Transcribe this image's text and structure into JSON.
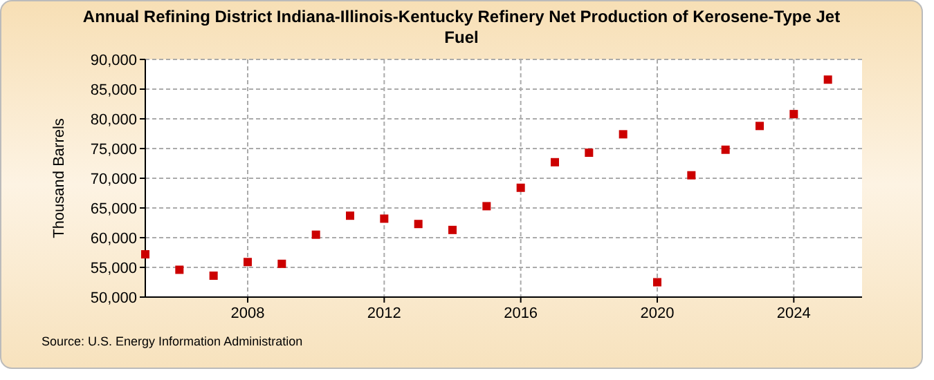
{
  "chart_data": {
    "type": "scatter",
    "title": "Annual Refining District Indiana-Illinois-Kentucky Refinery Net Production of Kerosene-Type Jet Fuel",
    "ylabel": "Thousand Barrels",
    "annotations": [
      "Source: U.S. Energy Information Administration"
    ],
    "x": [
      2005,
      2006,
      2007,
      2008,
      2009,
      2010,
      2011,
      2012,
      2013,
      2014,
      2015,
      2016,
      2017,
      2018,
      2019,
      2020,
      2021,
      2022,
      2023,
      2024,
      2025
    ],
    "series": [
      {
        "color": "#cc0000",
        "values": [
          57200,
          54600,
          53600,
          55900,
          55600,
          60500,
          63700,
          63200,
          62300,
          61300,
          65300,
          68400,
          72700,
          74300,
          77400,
          52500,
          70500,
          74800,
          78800,
          80800,
          86600
        ]
      }
    ],
    "xlim": [
      2005,
      2026
    ],
    "xticks": [
      2008,
      2012,
      2016,
      2020,
      2024
    ],
    "ylim": [
      50000,
      90000
    ],
    "yticks": [
      {
        "value": 50000,
        "label": "50,000"
      },
      {
        "value": 55000,
        "label": "55,000"
      },
      {
        "value": 60000,
        "label": "60,000"
      },
      {
        "value": 65000,
        "label": "65,000"
      },
      {
        "value": 70000,
        "label": "70,000"
      },
      {
        "value": 75000,
        "label": "75,000"
      },
      {
        "value": 80000,
        "label": "80,000"
      },
      {
        "value": 85000,
        "label": "85,000"
      },
      {
        "value": 90000,
        "label": "90,000"
      }
    ],
    "grid": true,
    "marker": "square"
  }
}
